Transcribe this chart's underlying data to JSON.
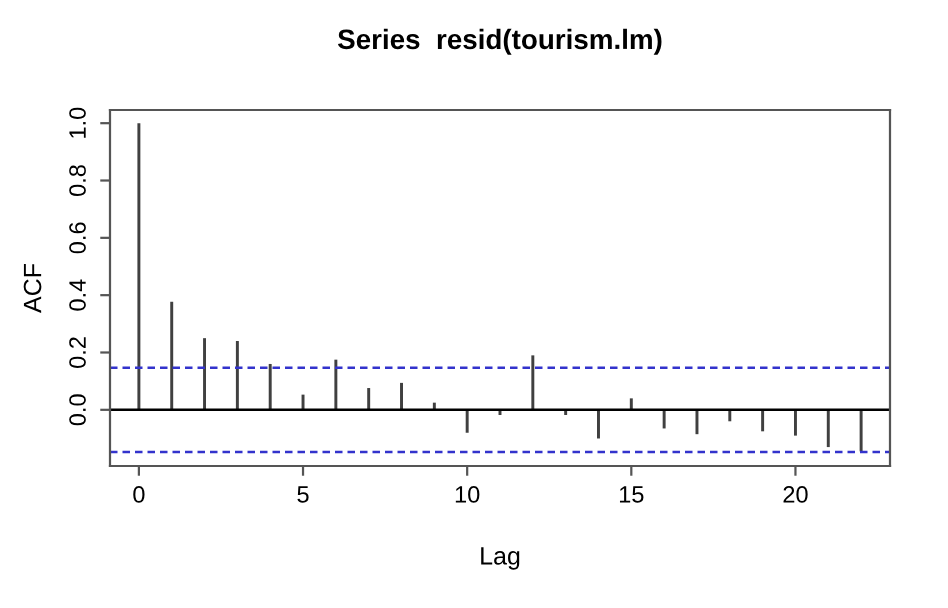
{
  "chart_data": {
    "type": "bar",
    "title": "Series  resid(tourism.lm)",
    "xlabel": "Lag",
    "ylabel": "ACF",
    "x": [
      0,
      1,
      2,
      3,
      4,
      5,
      6,
      7,
      8,
      9,
      10,
      11,
      12,
      13,
      14,
      15,
      16,
      17,
      18,
      19,
      20,
      21,
      22
    ],
    "values": [
      1.0,
      0.377,
      0.25,
      0.24,
      0.16,
      0.053,
      0.175,
      0.076,
      0.094,
      0.025,
      -0.08,
      -0.018,
      0.19,
      -0.018,
      -0.1,
      0.04,
      -0.065,
      -0.085,
      -0.04,
      -0.075,
      -0.09,
      -0.13,
      -0.145
    ],
    "color": "#404040",
    "xlim": [
      -0.88,
      22.88
    ],
    "ylim": [
      -0.196,
      1.046
    ],
    "xticks": [
      0,
      5,
      10,
      15,
      20
    ],
    "yticks": [
      {
        "value": 0,
        "label": "0.0"
      },
      {
        "value": 0.2,
        "label": "0.2"
      },
      {
        "value": 0.4,
        "label": "0.4"
      },
      {
        "value": 0.6,
        "label": "0.6"
      },
      {
        "value": 0.8,
        "label": "0.8"
      },
      {
        "value": 1.0,
        "label": "1.0"
      }
    ],
    "ref_lines": [
      {
        "axis": "y",
        "value": 0,
        "color": "#000000",
        "line_style": "solid"
      },
      {
        "axis": "y",
        "value": 0.147,
        "color": "#3333cc",
        "line_style": "dashed"
      },
      {
        "axis": "y",
        "value": -0.147,
        "color": "#3333cc",
        "line_style": "dashed"
      }
    ],
    "grid": false
  }
}
